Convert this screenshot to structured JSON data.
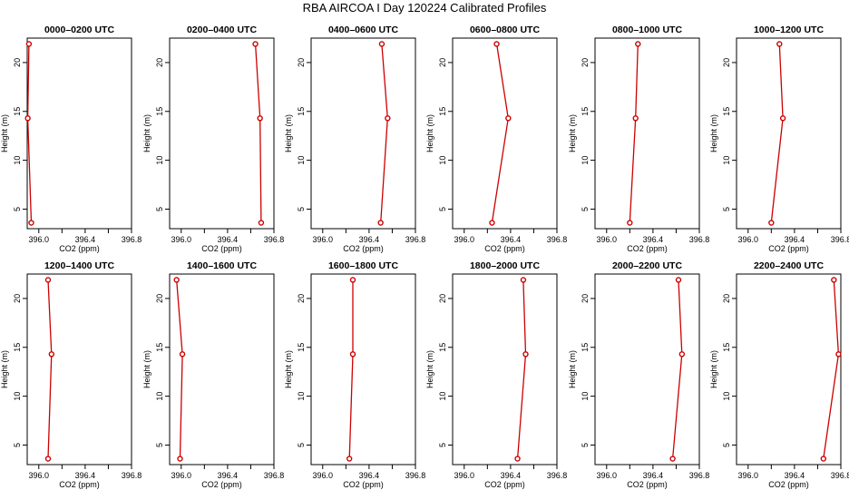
{
  "title": "RBA AIRCOA I  Day 120224  Calibrated Profiles",
  "chart_data": {
    "type": "line",
    "xlabel": "CO2 (ppm)",
    "ylabel": "Height (m)",
    "xlim": [
      395.9,
      396.8
    ],
    "ylim": [
      3,
      22.5
    ],
    "xticks": [
      396.0,
      396.2,
      396.4,
      396.6,
      396.8
    ],
    "xtick_labels": [
      "396.0",
      "",
      "396.4",
      "",
      "396.8"
    ],
    "yticks": [
      5,
      10,
      15,
      20
    ],
    "ytick_labels": [
      "5",
      "10",
      "15",
      "20"
    ],
    "grid": false,
    "marker_color": "#cc0000",
    "line_color": "#cc0000",
    "heights": [
      21.9,
      14.3,
      3.6
    ],
    "panels": [
      {
        "title": "0000–0200 UTC",
        "values": [
          395.915,
          395.905,
          395.935
        ]
      },
      {
        "title": "0200–0400 UTC",
        "values": [
          396.64,
          396.68,
          396.69
        ]
      },
      {
        "title": "0400–0600 UTC",
        "values": [
          396.51,
          396.56,
          396.5
        ]
      },
      {
        "title": "0600–0800 UTC",
        "values": [
          396.28,
          396.38,
          396.24
        ]
      },
      {
        "title": "0800–1000 UTC",
        "values": [
          396.27,
          396.25,
          396.2
        ]
      },
      {
        "title": "1000–1200 UTC",
        "values": [
          396.27,
          396.3,
          396.2
        ]
      },
      {
        "title": "1200–1400 UTC",
        "values": [
          396.08,
          396.11,
          396.08
        ]
      },
      {
        "title": "1400–1600 UTC",
        "values": [
          395.96,
          396.01,
          395.99
        ]
      },
      {
        "title": "1600–1800 UTC",
        "values": [
          396.26,
          396.26,
          396.23
        ]
      },
      {
        "title": "1800–2000 UTC",
        "values": [
          396.51,
          396.53,
          396.46
        ]
      },
      {
        "title": "2000–2200 UTC",
        "values": [
          396.62,
          396.65,
          396.57
        ]
      },
      {
        "title": "2200–2400 UTC",
        "values": [
          396.74,
          396.78,
          396.65
        ]
      }
    ]
  }
}
